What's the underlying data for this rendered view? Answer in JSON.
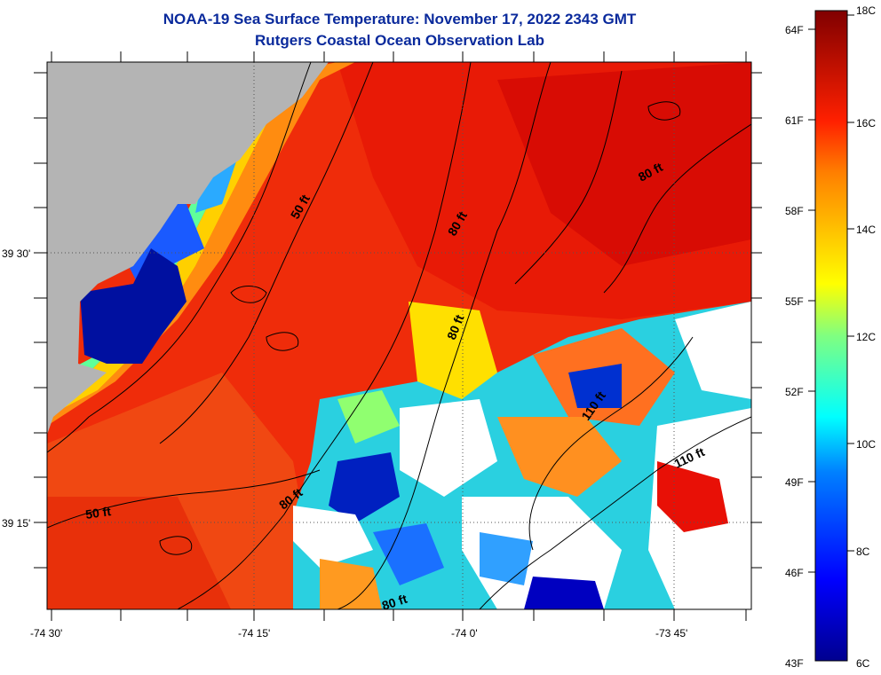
{
  "title": "NOAA-19 Sea Surface Temperature:  November 17, 2022 2343 GMT",
  "subtitle": "Rutgers Coastal Ocean Observation Lab",
  "axes": {
    "x_ticks": [
      "-74 30'",
      "-74 15'",
      "-74 0'",
      "-73 45'"
    ],
    "y_ticks": [
      "39 30'",
      "39 15'"
    ]
  },
  "colorbar": {
    "fahrenheit": [
      "64F",
      "61F",
      "58F",
      "55F",
      "52F",
      "49F",
      "46F",
      "43F"
    ],
    "celsius": [
      "18C",
      "16C",
      "14C",
      "12C",
      "10C",
      "8C",
      "6C"
    ]
  },
  "contour_labels": [
    {
      "text": "50 ft"
    },
    {
      "text": "50 ft"
    },
    {
      "text": "80 ft"
    },
    {
      "text": "80 ft"
    },
    {
      "text": "80 ft"
    },
    {
      "text": "80 ft"
    },
    {
      "text": "80 ft"
    },
    {
      "text": "110 ft"
    },
    {
      "text": "110 ft"
    }
  ],
  "colors": {
    "title": "#0a2a9c",
    "land": "#b4b4b4",
    "cloud": "#ffffff"
  }
}
